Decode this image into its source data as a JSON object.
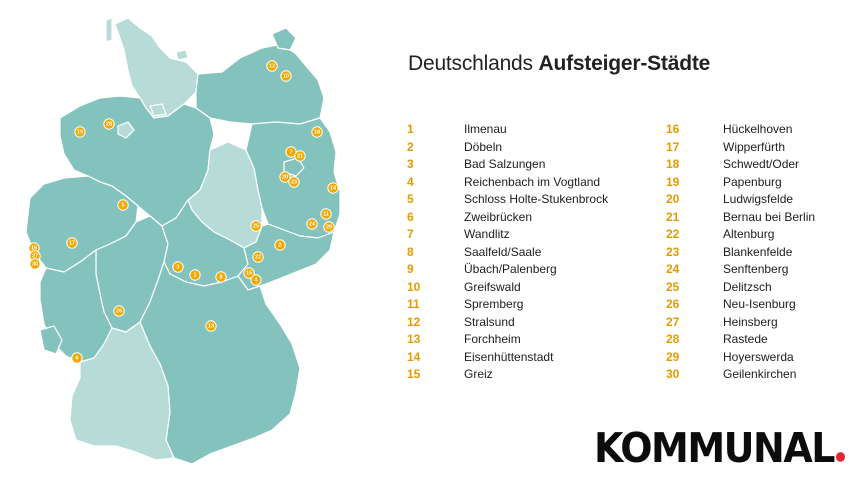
{
  "title": {
    "light": "Deutschlands",
    "bold": "Aufsteiger-Städte"
  },
  "colors": {
    "state_fill": "#84c2bd",
    "state_light": "#b7dbd7",
    "border": "#ffffff",
    "marker": "#f2a800",
    "rank_number": "#e69a00",
    "logo_dot": "#e8262e"
  },
  "rankings_left": [
    {
      "rank": "1",
      "city": "Ilmenau"
    },
    {
      "rank": "2",
      "city": "Döbeln"
    },
    {
      "rank": "3",
      "city": "Bad Salzungen"
    },
    {
      "rank": "4",
      "city": "Reichenbach im Vogtland"
    },
    {
      "rank": "5",
      "city": "Schloss Holte-Stukenbrock"
    },
    {
      "rank": "6",
      "city": "Zweibrücken"
    },
    {
      "rank": "7",
      "city": "Wandlitz"
    },
    {
      "rank": "8",
      "city": "Saalfeld/Saale"
    },
    {
      "rank": "9",
      "city": "Übach/Palenberg"
    },
    {
      "rank": "10",
      "city": "Greifswald"
    },
    {
      "rank": "11",
      "city": "Spremberg"
    },
    {
      "rank": "12",
      "city": "Stralsund"
    },
    {
      "rank": "13",
      "city": "Forchheim"
    },
    {
      "rank": "14",
      "city": "Eisenhüttenstadt"
    },
    {
      "rank": "15",
      "city": "Greiz"
    }
  ],
  "rankings_right": [
    {
      "rank": "16",
      "city": "Hückelhoven"
    },
    {
      "rank": "17",
      "city": "Wipperfürth"
    },
    {
      "rank": "18",
      "city": "Schwedt/Oder"
    },
    {
      "rank": "19",
      "city": "Papenburg"
    },
    {
      "rank": "20",
      "city": "Ludwigsfelde"
    },
    {
      "rank": "21",
      "city": "Bernau bei Berlin"
    },
    {
      "rank": "22",
      "city": "Altenburg"
    },
    {
      "rank": "23",
      "city": "Blankenfelde"
    },
    {
      "rank": "24",
      "city": "Senftenberg"
    },
    {
      "rank": "25",
      "city": "Delitzsch"
    },
    {
      "rank": "26",
      "city": "Neu-Isenburg"
    },
    {
      "rank": "27",
      "city": "Heinsberg"
    },
    {
      "rank": "28",
      "city": "Rastede"
    },
    {
      "rank": "29",
      "city": "Hoyerswerda"
    },
    {
      "rank": "30",
      "city": "Geilenkirchen"
    }
  ],
  "map_markers": [
    "1",
    "2",
    "3",
    "4",
    "5",
    "6",
    "7",
    "8",
    "9",
    "10",
    "11",
    "12",
    "13",
    "14",
    "15",
    "16",
    "17",
    "18",
    "19",
    "20",
    "21",
    "22",
    "23",
    "24",
    "25",
    "26",
    "27",
    "28",
    "29",
    "30"
  ],
  "logo": {
    "text": "KOMMUNAL"
  }
}
